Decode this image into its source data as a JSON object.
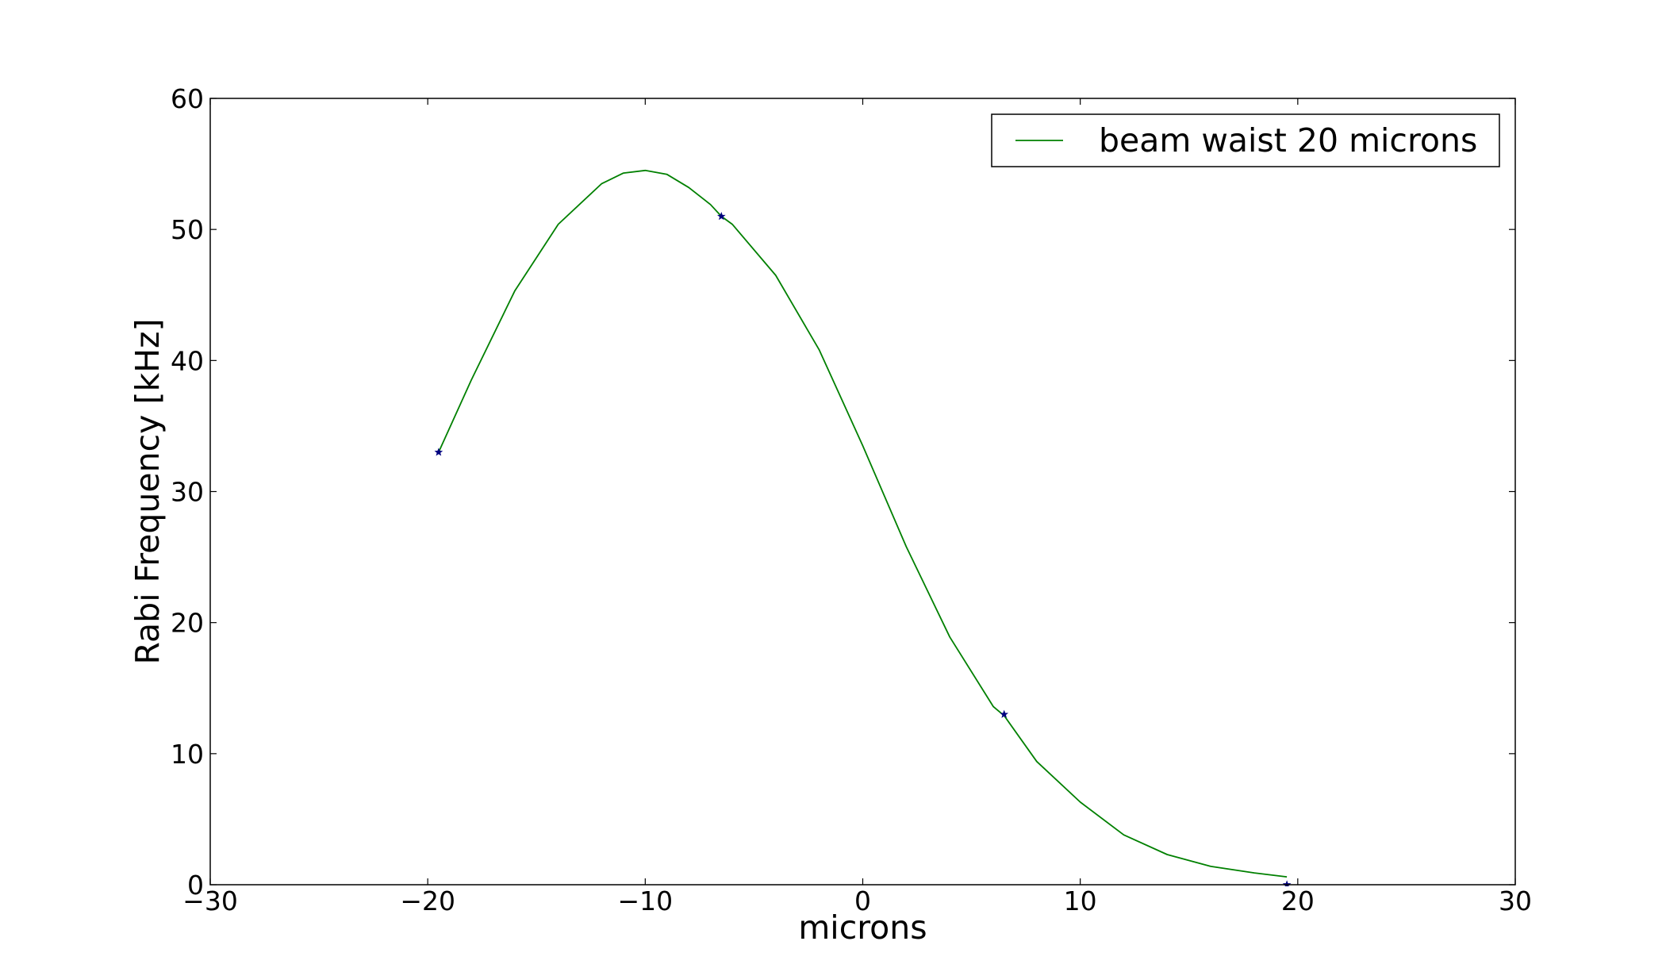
{
  "chart_data": {
    "type": "line",
    "xlabel": "microns",
    "ylabel": "Rabi Frequency [kHz]",
    "xlim": [
      -30,
      30
    ],
    "ylim": [
      0,
      60
    ],
    "xticks": [
      -30,
      -20,
      -10,
      0,
      10,
      20,
      30
    ],
    "xtick_labels": [
      "−30",
      "−20",
      "−10",
      "0",
      "10",
      "20",
      "30"
    ],
    "yticks": [
      0,
      10,
      20,
      30,
      40,
      50,
      60
    ],
    "ytick_labels": [
      "0",
      "10",
      "20",
      "30",
      "40",
      "50",
      "60"
    ],
    "grid": false,
    "legend_position": "top-right",
    "series": [
      {
        "name": "beam waist 20 microns",
        "kind": "line",
        "color": "#008000",
        "x": [
          -19.5,
          -18,
          -16,
          -14,
          -12,
          -11,
          -10,
          -9,
          -8,
          -7,
          -6.5,
          -6,
          -4,
          -2,
          0,
          2,
          4,
          6,
          6.5,
          8,
          10,
          12,
          14,
          16,
          18,
          19.5
        ],
        "y": [
          33.0,
          38.5,
          45.3,
          50.4,
          53.5,
          54.3,
          54.5,
          54.2,
          53.2,
          51.9,
          51.0,
          50.4,
          46.5,
          40.8,
          33.5,
          25.8,
          18.9,
          13.6,
          12.9,
          9.4,
          6.3,
          3.8,
          2.3,
          1.4,
          0.9,
          0.6
        ]
      },
      {
        "name": "",
        "kind": "scatter",
        "marker": "star",
        "color": "#000080",
        "x": [
          -19.5,
          -6.5,
          6.5,
          19.5
        ],
        "y": [
          33,
          51,
          13,
          0
        ]
      }
    ]
  }
}
